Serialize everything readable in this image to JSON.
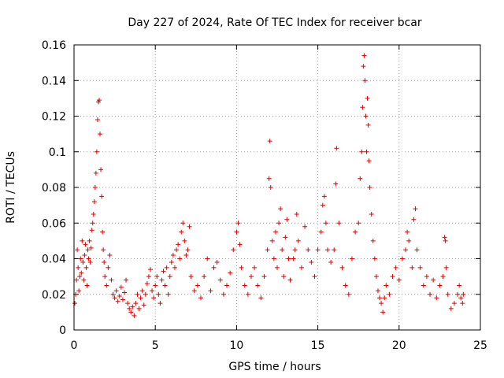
{
  "chart_data": {
    "type": "scatter",
    "title": "Day 227 of 2024, Rate Of TEC Index for receiver bcar",
    "xlabel": "GPS time / hours",
    "ylabel": "ROTI / TECUs",
    "xlim": [
      0,
      25
    ],
    "ylim": [
      0,
      0.16
    ],
    "xticks": [
      0,
      5,
      10,
      15,
      20,
      25
    ],
    "yticks": [
      0,
      0.02,
      0.04,
      0.06,
      0.08,
      0.1,
      0.12,
      0.14,
      0.16
    ],
    "xtick_labels": [
      "0",
      "5",
      "10",
      "15",
      "20",
      "25"
    ],
    "ytick_labels": [
      "0",
      "0.02",
      "0.04",
      "0.06",
      "0.08",
      "0.1",
      "0.12",
      "0.14",
      "0.16"
    ],
    "grid": true,
    "marker": "plus",
    "color": "#e00000",
    "series": [
      {
        "points": [
          [
            0.05,
            0.015
          ],
          [
            0.1,
            0.02
          ],
          [
            0.15,
            0.028
          ],
          [
            0.2,
            0.045
          ],
          [
            0.25,
            0.035
          ],
          [
            0.3,
            0.022
          ],
          [
            0.35,
            0.03
          ],
          [
            0.4,
            0.04
          ],
          [
            0.45,
            0.032
          ],
          [
            0.5,
            0.05
          ],
          [
            0.55,
            0.038
          ],
          [
            0.6,
            0.028
          ],
          [
            0.65,
            0.042
          ],
          [
            0.7,
            0.048
          ],
          [
            0.75,
            0.035
          ],
          [
            0.8,
            0.025
          ],
          [
            0.85,
            0.045
          ],
          [
            0.9,
            0.04
          ],
          [
            0.95,
            0.05
          ],
          [
            1.0,
            0.038
          ],
          [
            1.05,
            0.046
          ],
          [
            1.1,
            0.056
          ],
          [
            1.15,
            0.06
          ],
          [
            1.2,
            0.065
          ],
          [
            1.25,
            0.072
          ],
          [
            1.3,
            0.08
          ],
          [
            1.35,
            0.088
          ],
          [
            1.4,
            0.1
          ],
          [
            1.45,
            0.118
          ],
          [
            1.5,
            0.128
          ],
          [
            1.55,
            0.129
          ],
          [
            1.6,
            0.11
          ],
          [
            1.65,
            0.09
          ],
          [
            1.7,
            0.075
          ],
          [
            1.75,
            0.055
          ],
          [
            1.8,
            0.045
          ],
          [
            1.85,
            0.038
          ],
          [
            1.9,
            0.03
          ],
          [
            2.0,
            0.025
          ],
          [
            2.1,
            0.035
          ],
          [
            2.2,
            0.042
          ],
          [
            2.3,
            0.028
          ],
          [
            2.4,
            0.02
          ],
          [
            2.5,
            0.018
          ],
          [
            2.6,
            0.022
          ],
          [
            2.7,
            0.016
          ],
          [
            2.8,
            0.019
          ],
          [
            2.9,
            0.024
          ],
          [
            3.0,
            0.017
          ],
          [
            3.1,
            0.021
          ],
          [
            3.2,
            0.028
          ],
          [
            3.3,
            0.015
          ],
          [
            3.4,
            0.012
          ],
          [
            3.5,
            0.01
          ],
          [
            3.6,
            0.013
          ],
          [
            3.7,
            0.008
          ],
          [
            3.8,
            0.015
          ],
          [
            3.9,
            0.02
          ],
          [
            4.0,
            0.012
          ],
          [
            4.1,
            0.018
          ],
          [
            4.2,
            0.022
          ],
          [
            4.3,
            0.014
          ],
          [
            4.4,
            0.02
          ],
          [
            4.5,
            0.026
          ],
          [
            4.6,
            0.03
          ],
          [
            4.7,
            0.034
          ],
          [
            4.8,
            0.022
          ],
          [
            4.9,
            0.018
          ],
          [
            5.0,
            0.025
          ],
          [
            5.1,
            0.03
          ],
          [
            5.2,
            0.02
          ],
          [
            5.3,
            0.015
          ],
          [
            5.4,
            0.028
          ],
          [
            5.5,
            0.033
          ],
          [
            5.6,
            0.025
          ],
          [
            5.7,
            0.035
          ],
          [
            5.8,
            0.02
          ],
          [
            5.9,
            0.03
          ],
          [
            6.0,
            0.038
          ],
          [
            6.1,
            0.042
          ],
          [
            6.2,
            0.035
          ],
          [
            6.3,
            0.045
          ],
          [
            6.4,
            0.048
          ],
          [
            6.5,
            0.04
          ],
          [
            6.6,
            0.055
          ],
          [
            6.7,
            0.06
          ],
          [
            6.8,
            0.05
          ],
          [
            6.9,
            0.042
          ],
          [
            7.0,
            0.045
          ],
          [
            7.1,
            0.058
          ],
          [
            7.2,
            0.03
          ],
          [
            7.4,
            0.022
          ],
          [
            7.6,
            0.025
          ],
          [
            7.8,
            0.018
          ],
          [
            8.0,
            0.03
          ],
          [
            8.2,
            0.04
          ],
          [
            8.4,
            0.022
          ],
          [
            8.6,
            0.035
          ],
          [
            8.8,
            0.038
          ],
          [
            9.0,
            0.028
          ],
          [
            9.2,
            0.02
          ],
          [
            9.4,
            0.025
          ],
          [
            9.6,
            0.032
          ],
          [
            9.8,
            0.045
          ],
          [
            10.0,
            0.055
          ],
          [
            10.1,
            0.06
          ],
          [
            10.2,
            0.048
          ],
          [
            10.3,
            0.035
          ],
          [
            10.5,
            0.025
          ],
          [
            10.7,
            0.02
          ],
          [
            10.9,
            0.03
          ],
          [
            11.1,
            0.035
          ],
          [
            11.3,
            0.025
          ],
          [
            11.5,
            0.018
          ],
          [
            11.7,
            0.03
          ],
          [
            11.9,
            0.045
          ],
          [
            12.0,
            0.085
          ],
          [
            12.05,
            0.106
          ],
          [
            12.1,
            0.08
          ],
          [
            12.2,
            0.05
          ],
          [
            12.3,
            0.04
          ],
          [
            12.4,
            0.055
          ],
          [
            12.5,
            0.035
          ],
          [
            12.6,
            0.06
          ],
          [
            12.7,
            0.068
          ],
          [
            12.8,
            0.045
          ],
          [
            12.9,
            0.03
          ],
          [
            13.0,
            0.052
          ],
          [
            13.1,
            0.062
          ],
          [
            13.2,
            0.04
          ],
          [
            13.3,
            0.028
          ],
          [
            13.5,
            0.04
          ],
          [
            13.6,
            0.045
          ],
          [
            13.7,
            0.065
          ],
          [
            13.8,
            0.05
          ],
          [
            14.0,
            0.035
          ],
          [
            14.2,
            0.058
          ],
          [
            14.4,
            0.045
          ],
          [
            14.6,
            0.038
          ],
          [
            14.8,
            0.03
          ],
          [
            15.0,
            0.045
          ],
          [
            15.2,
            0.055
          ],
          [
            15.3,
            0.07
          ],
          [
            15.4,
            0.075
          ],
          [
            15.5,
            0.06
          ],
          [
            15.6,
            0.045
          ],
          [
            15.8,
            0.038
          ],
          [
            16.0,
            0.045
          ],
          [
            16.1,
            0.082
          ],
          [
            16.15,
            0.102
          ],
          [
            16.3,
            0.06
          ],
          [
            16.5,
            0.035
          ],
          [
            16.7,
            0.025
          ],
          [
            16.9,
            0.02
          ],
          [
            17.1,
            0.04
          ],
          [
            17.3,
            0.055
          ],
          [
            17.5,
            0.06
          ],
          [
            17.6,
            0.085
          ],
          [
            17.7,
            0.1
          ],
          [
            17.75,
            0.125
          ],
          [
            17.8,
            0.148
          ],
          [
            17.85,
            0.154
          ],
          [
            17.9,
            0.14
          ],
          [
            17.95,
            0.12
          ],
          [
            18.0,
            0.1
          ],
          [
            18.05,
            0.13
          ],
          [
            18.1,
            0.115
          ],
          [
            18.15,
            0.095
          ],
          [
            18.2,
            0.08
          ],
          [
            18.3,
            0.065
          ],
          [
            18.4,
            0.05
          ],
          [
            18.5,
            0.04
          ],
          [
            18.6,
            0.03
          ],
          [
            18.7,
            0.022
          ],
          [
            18.8,
            0.018
          ],
          [
            18.9,
            0.015
          ],
          [
            19.0,
            0.01
          ],
          [
            19.1,
            0.018
          ],
          [
            19.2,
            0.025
          ],
          [
            19.4,
            0.02
          ],
          [
            19.6,
            0.03
          ],
          [
            19.8,
            0.035
          ],
          [
            20.0,
            0.028
          ],
          [
            20.2,
            0.04
          ],
          [
            20.4,
            0.045
          ],
          [
            20.5,
            0.055
          ],
          [
            20.6,
            0.05
          ],
          [
            20.8,
            0.035
          ],
          [
            20.9,
            0.062
          ],
          [
            21.0,
            0.068
          ],
          [
            21.1,
            0.045
          ],
          [
            21.3,
            0.035
          ],
          [
            21.5,
            0.025
          ],
          [
            21.7,
            0.03
          ],
          [
            21.9,
            0.02
          ],
          [
            22.1,
            0.028
          ],
          [
            22.3,
            0.018
          ],
          [
            22.5,
            0.025
          ],
          [
            22.7,
            0.03
          ],
          [
            22.8,
            0.052
          ],
          [
            22.85,
            0.05
          ],
          [
            22.9,
            0.035
          ],
          [
            23.0,
            0.02
          ],
          [
            23.2,
            0.012
          ],
          [
            23.4,
            0.015
          ],
          [
            23.6,
            0.02
          ],
          [
            23.7,
            0.025
          ],
          [
            23.8,
            0.018
          ],
          [
            23.9,
            0.015
          ],
          [
            23.95,
            0.02
          ]
        ]
      }
    ]
  }
}
